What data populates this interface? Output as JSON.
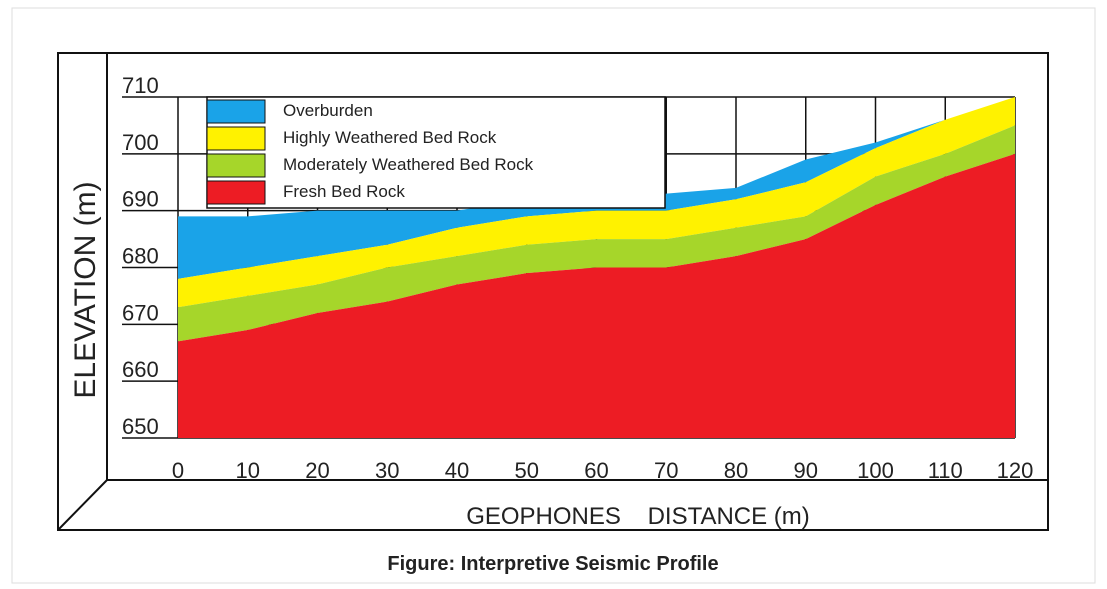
{
  "chart_data": {
    "type": "area",
    "ylabel": "ELEVATION (m)",
    "xlabel": "GEOPHONES    DISTANCE (m)",
    "caption": "Figure: Interpretive Seismic Profile",
    "x": [
      0,
      10,
      20,
      30,
      40,
      50,
      60,
      70,
      80,
      90,
      100,
      110,
      120
    ],
    "series": [
      {
        "name": "Overburden",
        "color": "#1aa3e8",
        "values": [
          689,
          689,
          690,
          690,
          690,
          692,
          693,
          693,
          694,
          699,
          702,
          706,
          710
        ]
      },
      {
        "name": "Highly Weathered Bed Rock",
        "color": "#fff200",
        "values": [
          678,
          680,
          682,
          684,
          687,
          689,
          690,
          690,
          692,
          695,
          701,
          706,
          710
        ]
      },
      {
        "name": "Moderately Weathered Bed Rock",
        "color": "#a6d62a",
        "values": [
          673,
          675,
          677,
          680,
          682,
          684,
          685,
          685,
          687,
          689,
          696,
          700,
          705
        ]
      },
      {
        "name": "Fresh Bed Rock",
        "color": "#ed1c24",
        "values": [
          667,
          669,
          672,
          674,
          677,
          679,
          680,
          680,
          682,
          685,
          691,
          696,
          700
        ]
      }
    ],
    "xlim": [
      0,
      120
    ],
    "xticks": [
      0,
      10,
      20,
      30,
      40,
      50,
      60,
      70,
      80,
      90,
      100,
      110,
      120
    ],
    "ylim": [
      650,
      710
    ],
    "yticks": [
      650,
      660,
      670,
      680,
      690,
      700,
      710
    ],
    "grid": true,
    "legend": "upper left"
  }
}
